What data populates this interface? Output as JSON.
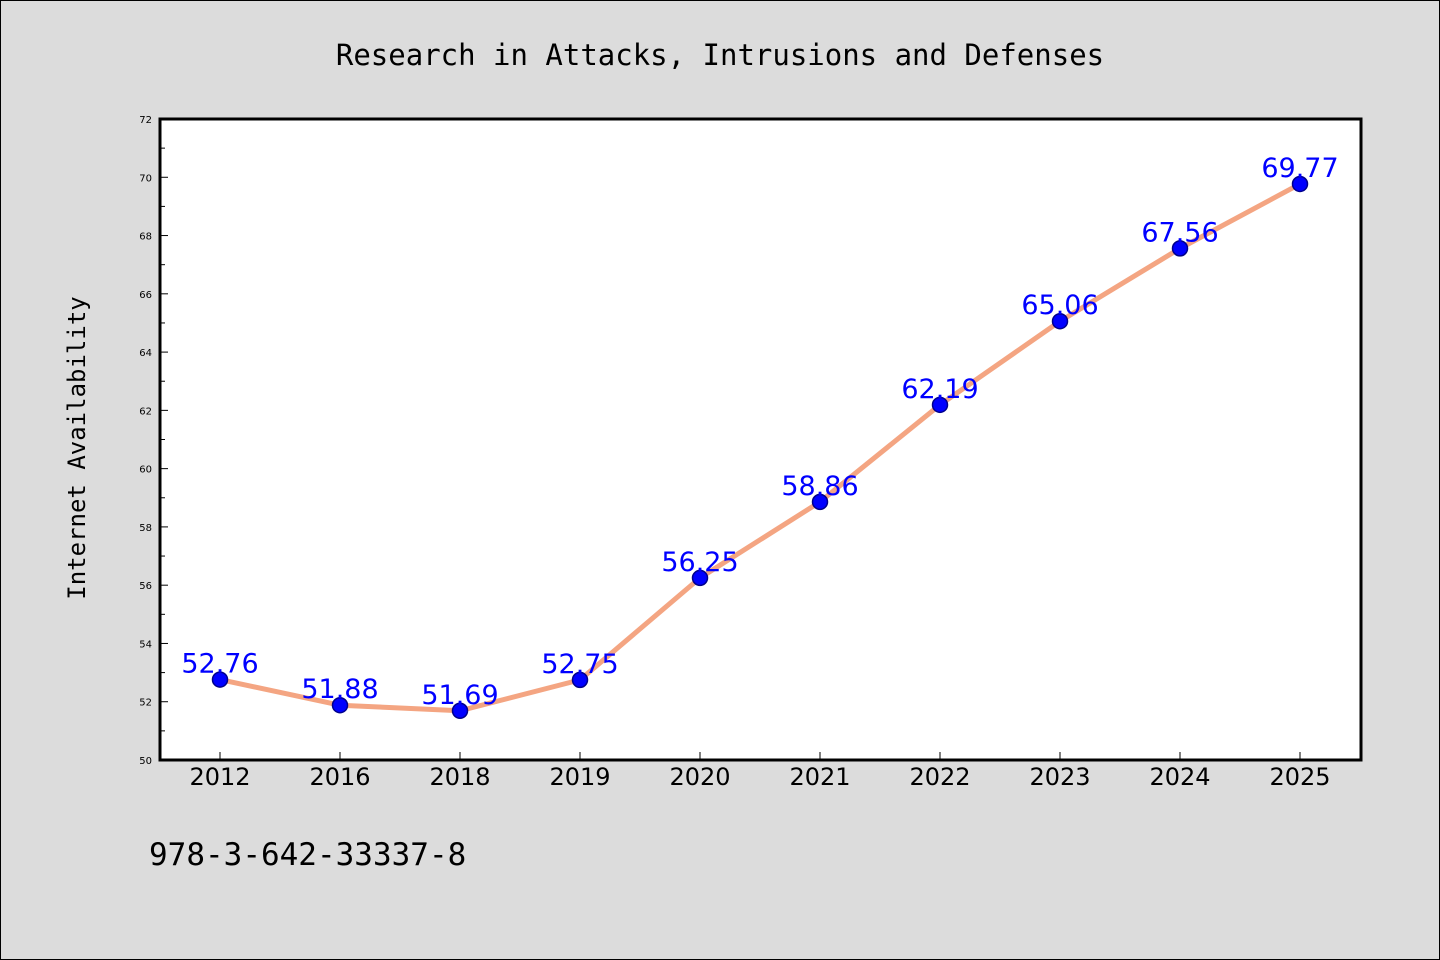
{
  "chart_data": {
    "type": "line",
    "title": "Research in Attacks, Intrusions and Defenses",
    "xlabel": "",
    "ylabel": "Internet Availability",
    "categories": [
      "2012",
      "2016",
      "2018",
      "2019",
      "2020",
      "2021",
      "2022",
      "2023",
      "2024",
      "2025"
    ],
    "series": [
      {
        "values": [
          52.76,
          51.88,
          51.69,
          52.75,
          56.25,
          58.86,
          62.19,
          65.06,
          67.56,
          69.77
        ],
        "labels": [
          "52.76",
          "51.88",
          "51.69",
          "52.75",
          "56.25",
          "58.86",
          "62.19",
          "65.06",
          "67.56",
          "69.77"
        ],
        "line_color": "#f4a582",
        "marker_color": "#0000ff",
        "marker_edge_color": "#00008b",
        "label_color": "#0000ff"
      }
    ],
    "ylim": [
      50,
      72
    ],
    "yticks": [
      "50",
      "52",
      "54",
      "56",
      "58",
      "60",
      "62",
      "64",
      "66",
      "68",
      "70",
      "72"
    ],
    "grid": false,
    "legend": "none",
    "annotation": "978-3-642-33337-8",
    "background_color": "#dcdcdc",
    "plot_background_color": "#ffffff"
  }
}
